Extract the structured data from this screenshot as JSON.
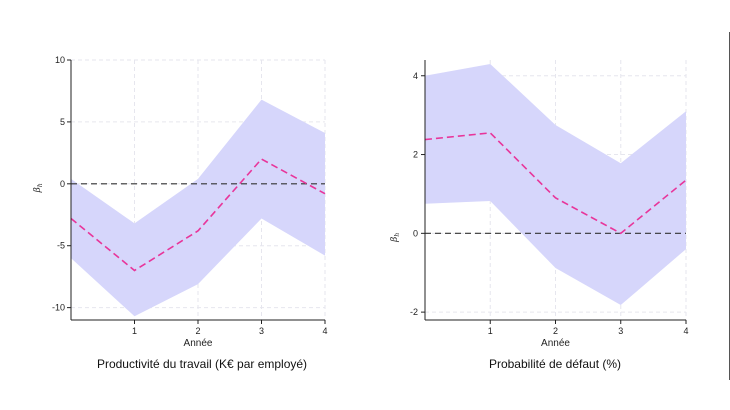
{
  "chart_data": [
    {
      "type": "line",
      "title": "Productivité du travail (K€ par employé)",
      "xlabel": "Année",
      "ylabel_main": "β",
      "ylabel_sub": "h",
      "xlim": [
        0,
        4
      ],
      "ylim": [
        -11,
        10
      ],
      "xticks": [
        1,
        2,
        3,
        4
      ],
      "yticks": [
        -10,
        -5,
        0,
        5,
        10
      ],
      "x": [
        0,
        1,
        2,
        3,
        4
      ],
      "series": [
        {
          "name": "estimate",
          "values": [
            -2.8,
            -7.0,
            -3.8,
            2.0,
            -0.8
          ]
        },
        {
          "name": "ci_upper",
          "values": [
            0.4,
            -3.2,
            0.4,
            6.8,
            4.1
          ]
        },
        {
          "name": "ci_lower",
          "values": [
            -6.0,
            -10.7,
            -8.1,
            -2.8,
            -5.8
          ]
        }
      ],
      "reference_line": 0,
      "grid": true
    },
    {
      "type": "line",
      "title": "Probabilité de défaut (%)",
      "xlabel": "Année",
      "ylabel_main": "β",
      "ylabel_sub": "h",
      "xlim": [
        0,
        4
      ],
      "ylim": [
        -2.2,
        4.4
      ],
      "xticks": [
        1,
        2,
        3,
        4
      ],
      "yticks": [
        -2,
        0,
        2,
        4
      ],
      "x": [
        0,
        1,
        2,
        3,
        4
      ],
      "series": [
        {
          "name": "estimate",
          "values": [
            2.38,
            2.55,
            0.9,
            0.0,
            1.35
          ]
        },
        {
          "name": "ci_upper",
          "values": [
            4.0,
            4.3,
            2.75,
            1.78,
            3.1
          ]
        },
        {
          "name": "ci_lower",
          "values": [
            0.75,
            0.82,
            -0.88,
            -1.82,
            -0.4
          ]
        }
      ],
      "reference_line": 0,
      "grid": true
    }
  ],
  "colors": {
    "band": "#d6d6fb",
    "estimate": "#e8359a",
    "reference": "#333333",
    "grid": "#e6e6ee",
    "axis": "#222222"
  }
}
